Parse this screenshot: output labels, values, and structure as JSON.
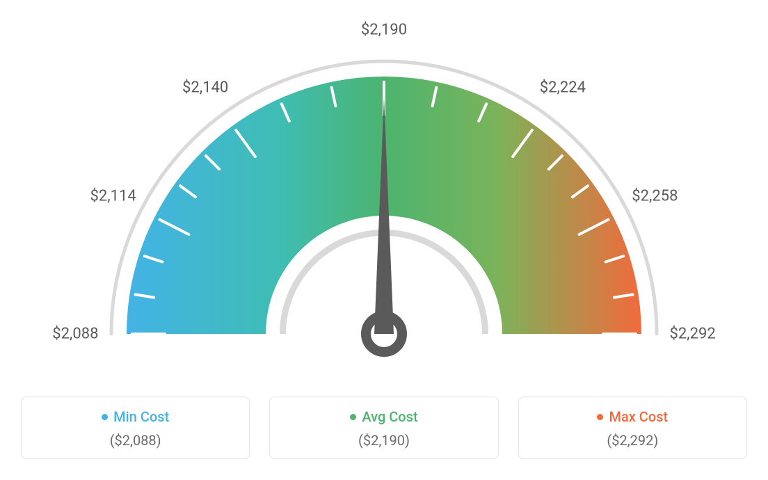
{
  "gauge": {
    "type": "gauge",
    "min": 2088,
    "max": 2292,
    "value": 2190,
    "tick_labels": [
      "$2,088",
      "$2,114",
      "$2,140",
      "$2,190",
      "$2,224",
      "$2,258",
      "$2,292"
    ],
    "tick_angles_deg": [
      180,
      153,
      126,
      90,
      54,
      27,
      0
    ],
    "minor_ticks_between": 2,
    "arc_inner_radius": 170,
    "arc_outer_radius": 370,
    "arc_colors": {
      "start": "#43b3e6",
      "mid": "#4cb46f",
      "end": "#f26a3c"
    },
    "outer_ring_color": "#d9d9d9",
    "inner_ring_color": "#d9d9d9",
    "tick_color": "#ffffff",
    "tick_label_color": "#5a5a5a",
    "tick_label_fontsize": 22,
    "needle_color": "#5a5a5a",
    "background_color": "#ffffff"
  },
  "legend": {
    "items": [
      {
        "label": "Min Cost",
        "value": "($2,088)",
        "color": "#43b3e6"
      },
      {
        "label": "Avg Cost",
        "value": "($2,190)",
        "color": "#4cb46f"
      },
      {
        "label": "Max Cost",
        "value": "($2,292)",
        "color": "#f26a3c"
      }
    ],
    "card_border_color": "#e5e5e5",
    "card_border_radius": 8,
    "label_fontsize": 20,
    "value_fontsize": 20,
    "value_color": "#6b6b6b"
  }
}
